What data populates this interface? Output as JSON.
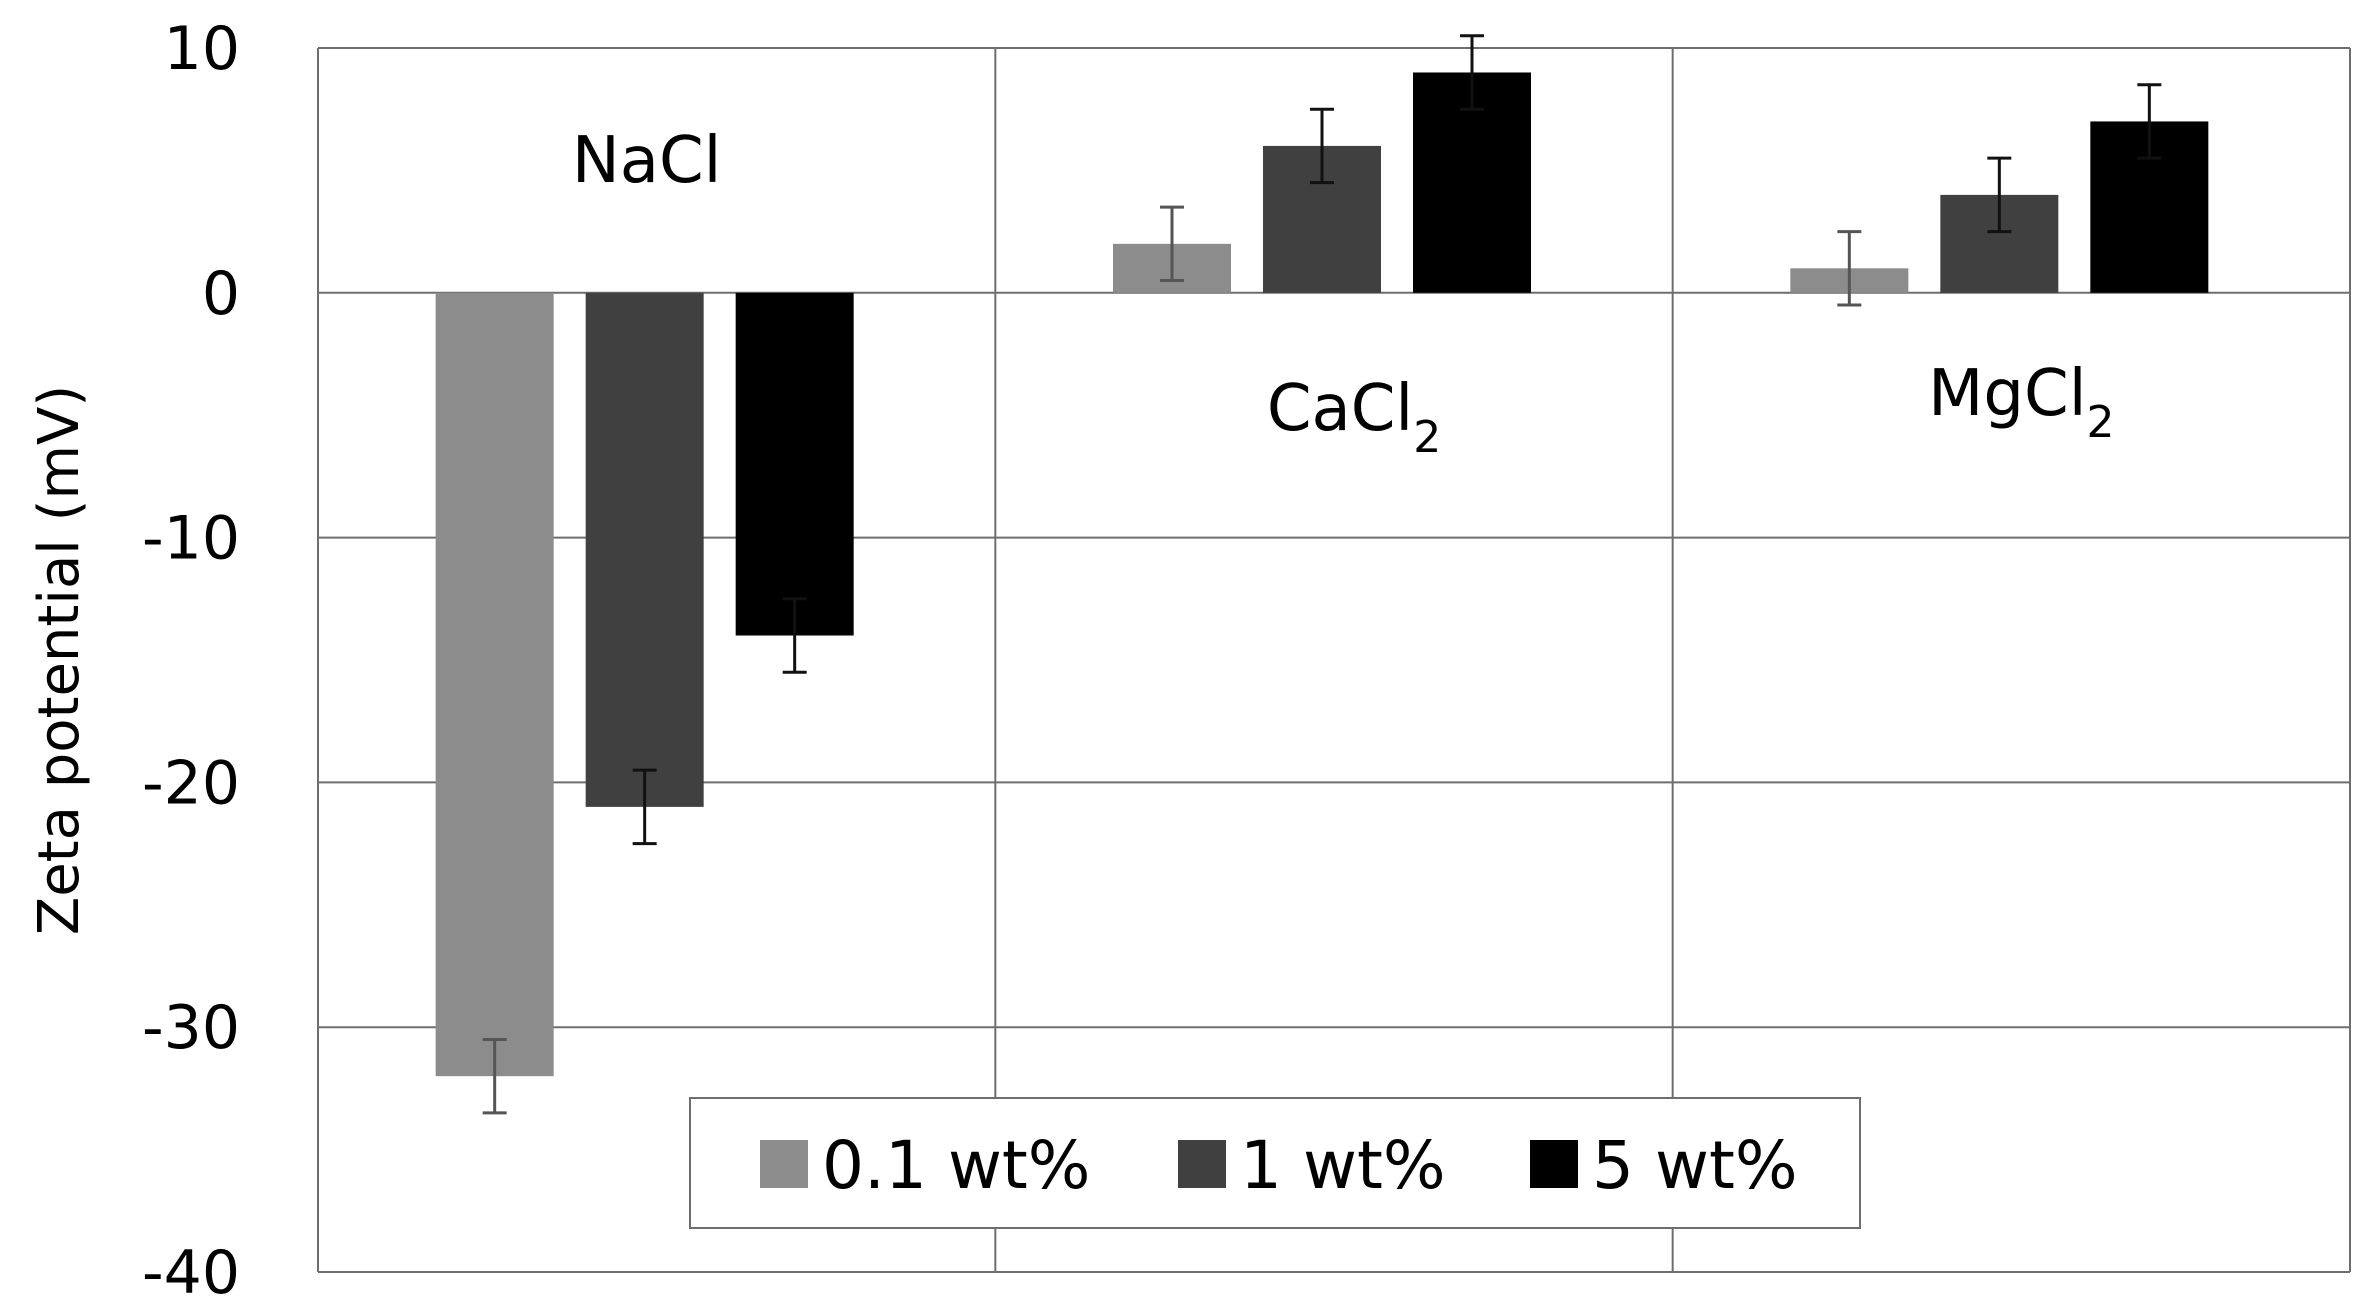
{
  "chart_data": {
    "type": "bar",
    "title": "",
    "xlabel": "",
    "ylabel": "Zeta potential (mV)",
    "ylim": [
      -40,
      10
    ],
    "yticks": [
      10,
      0,
      -10,
      -20,
      -30,
      -40
    ],
    "ytick_labels": [
      "10",
      "0",
      "-10",
      "-20",
      "-30",
      "-40"
    ],
    "grid": true,
    "legend_position": "bottom-center",
    "categories": [
      {
        "name": "NaCl",
        "sub": ""
      },
      {
        "name": "CaCl",
        "sub": "2"
      },
      {
        "name": "MgCl",
        "sub": "2"
      }
    ],
    "series": [
      {
        "name": "0.1 wt%",
        "color": "#8c8c8c",
        "values": [
          -32,
          2,
          1
        ],
        "errors": [
          1.5,
          1.5,
          1.5
        ]
      },
      {
        "name": "1 wt%",
        "color": "#404040",
        "values": [
          -21,
          6,
          4
        ],
        "errors": [
          1.5,
          1.5,
          1.5
        ]
      },
      {
        "name": "5 wt%",
        "color": "#000000",
        "values": [
          -14,
          9,
          7
        ],
        "errors": [
          1.5,
          1.5,
          1.5
        ]
      }
    ]
  }
}
